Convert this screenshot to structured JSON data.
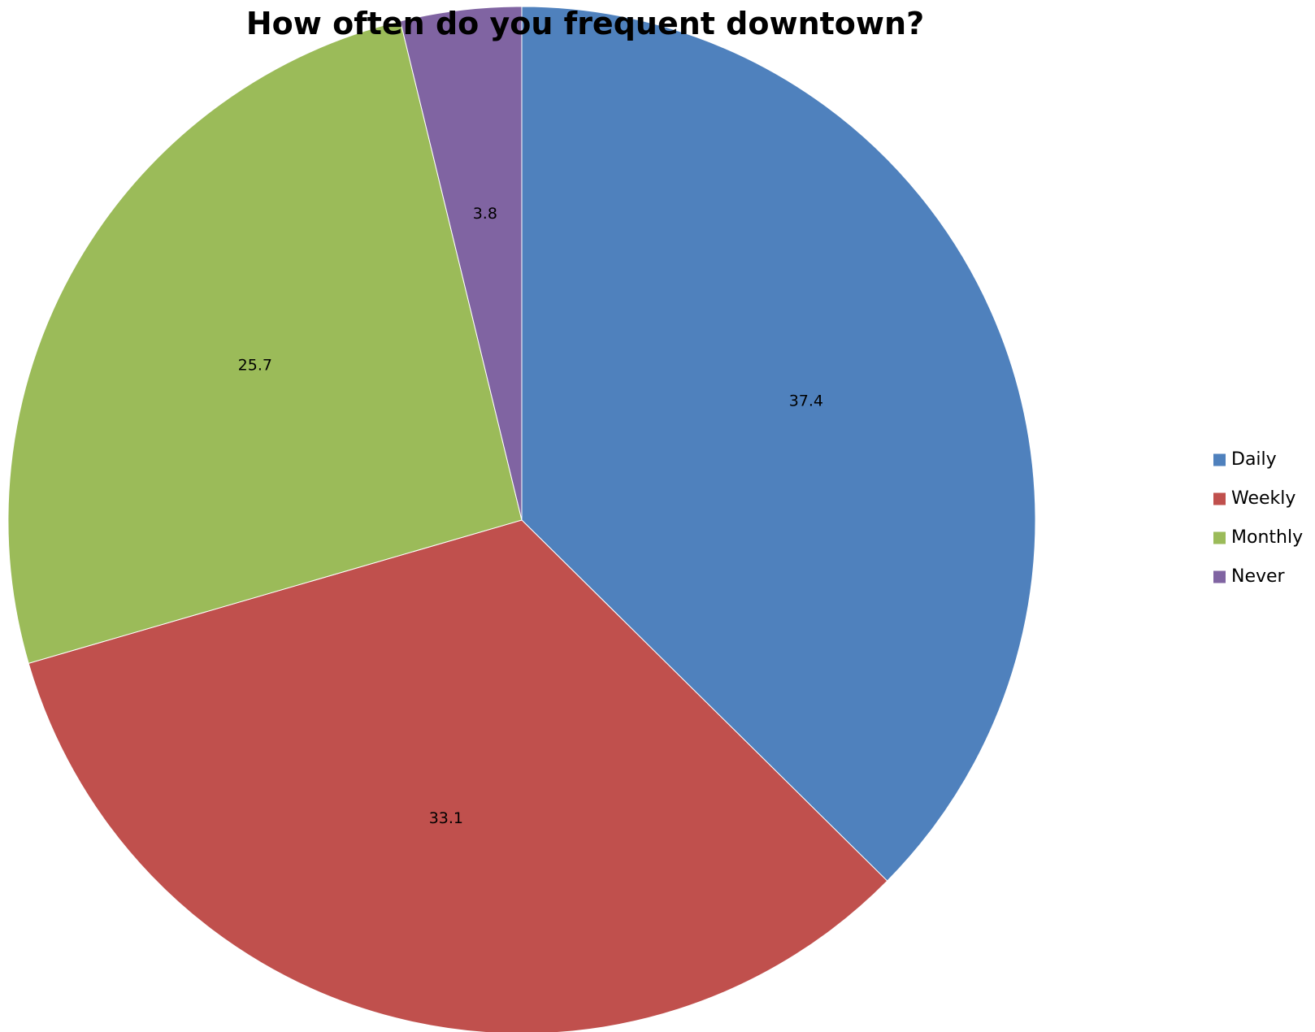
{
  "chart_data": {
    "type": "pie",
    "title": "How often do you frequent downtown?",
    "categories": [
      "Daily",
      "Weekly",
      "Monthly",
      "Never"
    ],
    "values": [
      37.4,
      33.1,
      25.7,
      3.8
    ],
    "colors": [
      "#4f81bd",
      "#c0504d",
      "#9bbb59",
      "#8064a2"
    ],
    "data_labels": [
      "37.4",
      "33.1",
      "25.7",
      "3.8"
    ],
    "start_angle": "12 o'clock",
    "direction": "clockwise",
    "legend_position": "right"
  }
}
